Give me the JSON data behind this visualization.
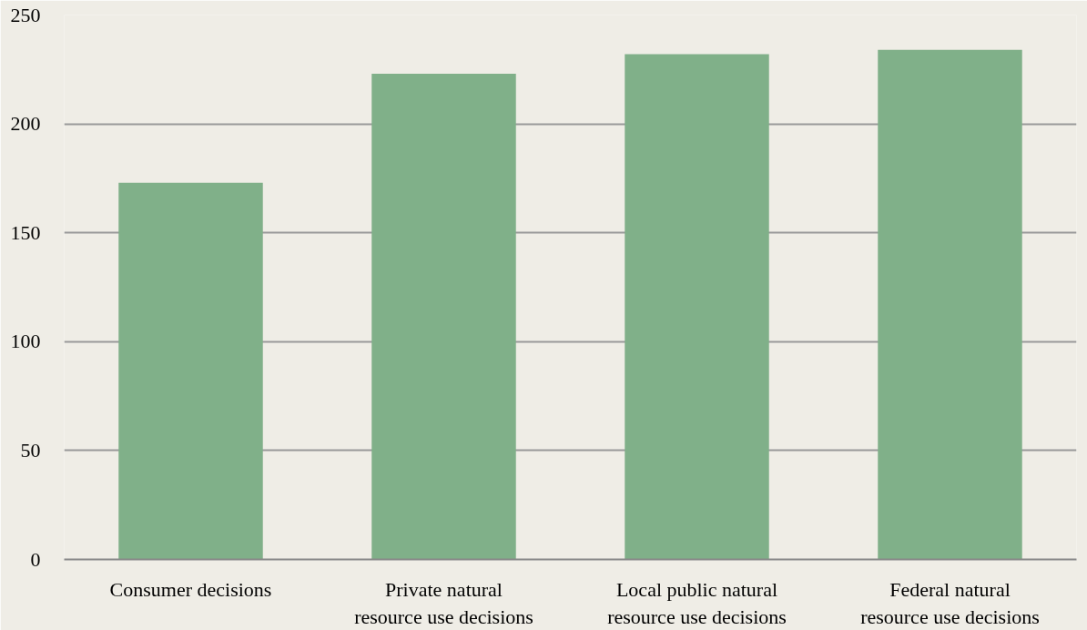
{
  "chart_data": {
    "type": "bar",
    "categories": [
      "Consumer decisions",
      "Private natural resource use decisions",
      "Local public natural resource use decisions",
      "Federal natural resource use decisions"
    ],
    "values": [
      173,
      223,
      232,
      234
    ],
    "color": "#80b089",
    "ylim": [
      0,
      250
    ],
    "yticks": [
      0,
      50,
      100,
      150,
      200,
      250
    ],
    "grid": "y"
  }
}
